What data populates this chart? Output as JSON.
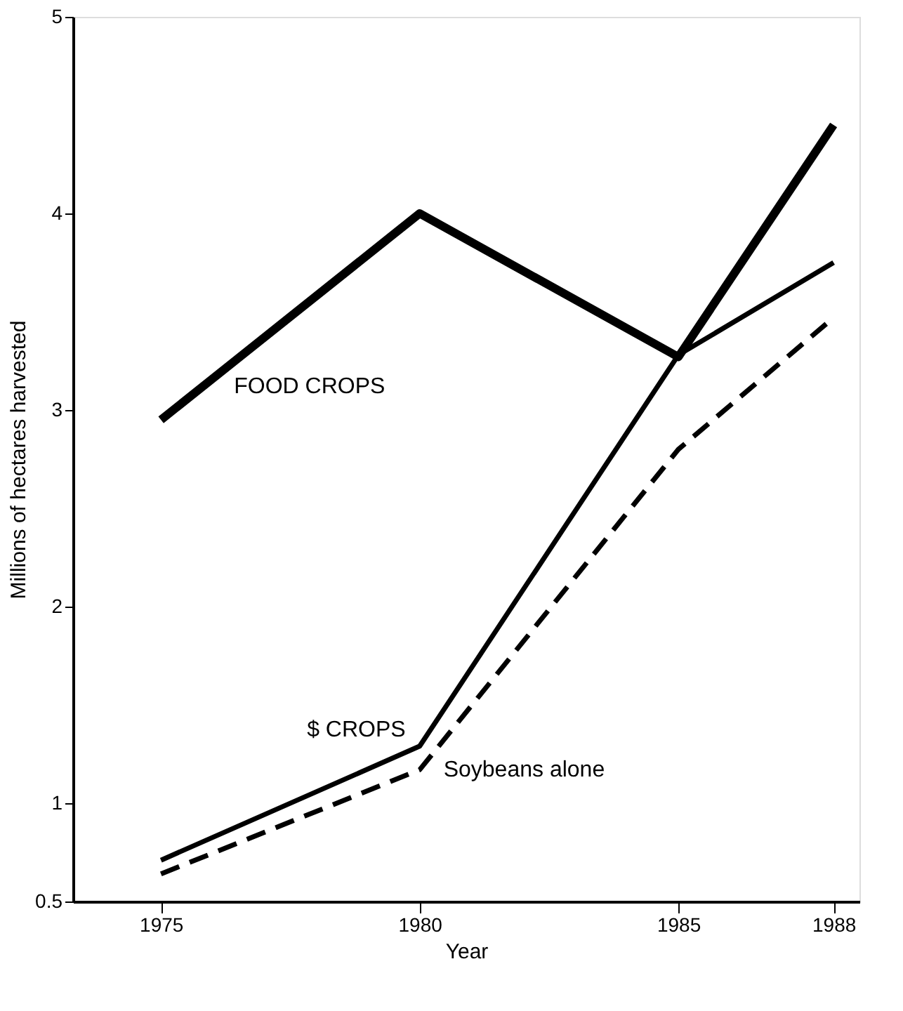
{
  "chart_data": {
    "type": "line",
    "xlabel": "Year",
    "ylabel": "Millions of hectares harvested",
    "x": [
      1975,
      1980,
      1985,
      1988
    ],
    "series": [
      {
        "name": "FOOD CROPS",
        "color": "#000000",
        "values": [
          2.95,
          4.0,
          3.27,
          4.45
        ],
        "line_style": "solid"
      },
      {
        "name": "$ CROPS",
        "color": "#000000",
        "values": [
          0.71,
          1.29,
          3.28,
          3.75
        ],
        "line_style": "solid"
      },
      {
        "name": "Soybeans alone",
        "color": "#000000",
        "values": [
          0.64,
          1.17,
          2.8,
          3.47
        ],
        "line_style": "dashed"
      }
    ],
    "xlim": [
      1973.3,
      1988.5
    ],
    "xticks": [
      1975,
      1980,
      1985,
      1988
    ],
    "ylim": [
      0.5,
      5
    ],
    "yticks": [
      0.5,
      1,
      2,
      3,
      4,
      5
    ],
    "grid": false,
    "marker": "none"
  }
}
